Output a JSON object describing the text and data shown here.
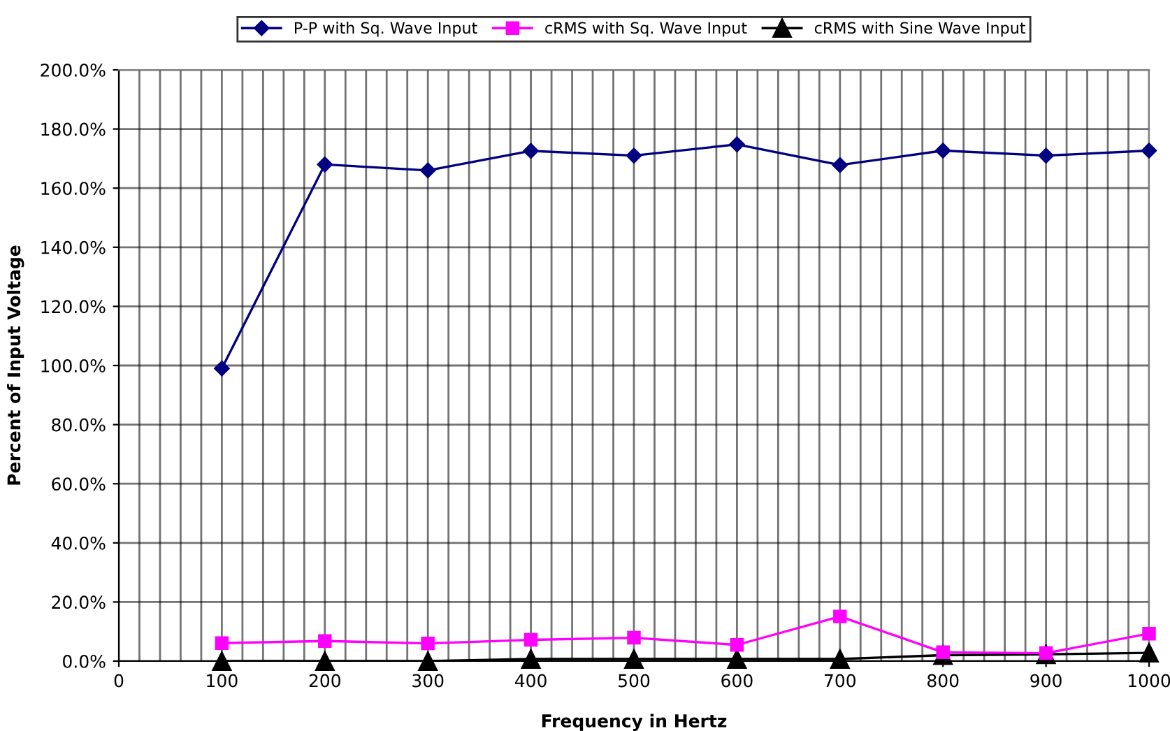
{
  "chart_data": {
    "type": "line",
    "xlabel": "Frequency in Hertz",
    "ylabel": "Percent of Input Voltage",
    "x": [
      100,
      200,
      300,
      400,
      500,
      600,
      700,
      800,
      900,
      1000
    ],
    "series": [
      {
        "name": "P-P with Sq. Wave Input",
        "color": "#000080",
        "marker": "diamond",
        "values": [
          99,
          168,
          166,
          172.6,
          171,
          174.8,
          167.8,
          172.7,
          171,
          172.7
        ]
      },
      {
        "name": "cRMS with Sq. Wave Input",
        "color": "#ff00ff",
        "marker": "square",
        "values": [
          6.1,
          6.8,
          6.0,
          7.2,
          7.9,
          5.5,
          15.1,
          3.0,
          2.7,
          9.3
        ]
      },
      {
        "name": "cRMS with Sine Wave Input",
        "color": "#000000",
        "marker": "triangle",
        "values": [
          0,
          0,
          0,
          0.7,
          0.7,
          0.7,
          0.7,
          2.0,
          2.3,
          2.8
        ]
      }
    ],
    "xlim": [
      0,
      1000
    ],
    "xticks": [
      0,
      {
        "value": 20,
        "label": null
      },
      {
        "value": 40,
        "label": null
      },
      {
        "value": 60,
        "label": null
      },
      {
        "value": 80,
        "label": null
      },
      100,
      {
        "value": 120,
        "label": null
      },
      {
        "value": 140,
        "label": null
      },
      {
        "value": 160,
        "label": null
      },
      {
        "value": 180,
        "label": null
      },
      200,
      {
        "value": 220,
        "label": null
      },
      {
        "value": 240,
        "label": null
      },
      {
        "value": 260,
        "label": null
      },
      {
        "value": 280,
        "label": null
      },
      300,
      {
        "value": 320,
        "label": null
      },
      {
        "value": 340,
        "label": null
      },
      {
        "value": 360,
        "label": null
      },
      {
        "value": 380,
        "label": null
      },
      400,
      {
        "value": 420,
        "label": null
      },
      {
        "value": 440,
        "label": null
      },
      {
        "value": 460,
        "label": null
      },
      {
        "value": 480,
        "label": null
      },
      500,
      {
        "value": 520,
        "label": null
      },
      {
        "value": 540,
        "label": null
      },
      {
        "value": 560,
        "label": null
      },
      {
        "value": 580,
        "label": null
      },
      600,
      {
        "value": 620,
        "label": null
      },
      {
        "value": 640,
        "label": null
      },
      {
        "value": 660,
        "label": null
      },
      {
        "value": 680,
        "label": null
      },
      700,
      {
        "value": 720,
        "label": null
      },
      {
        "value": 740,
        "label": null
      },
      {
        "value": 760,
        "label": null
      },
      {
        "value": 780,
        "label": null
      },
      800,
      {
        "value": 820,
        "label": null
      },
      {
        "value": 840,
        "label": null
      },
      {
        "value": 860,
        "label": null
      },
      {
        "value": 880,
        "label": null
      },
      900,
      {
        "value": 920,
        "label": null
      },
      {
        "value": 940,
        "label": null
      },
      {
        "value": 960,
        "label": null
      },
      {
        "value": 980,
        "label": null
      },
      1000
    ],
    "ylim": [
      0,
      200
    ],
    "yticks": [
      {
        "value": 0,
        "label": "0.0%"
      },
      {
        "value": 20,
        "label": "20.0%"
      },
      {
        "value": 40,
        "label": "40.0%"
      },
      {
        "value": 60,
        "label": "60.0%"
      },
      {
        "value": 80,
        "label": "80.0%"
      },
      {
        "value": 100,
        "label": "100.0%"
      },
      {
        "value": 120,
        "label": "120.0%"
      },
      {
        "value": 140,
        "label": "140.0%"
      },
      {
        "value": 160,
        "label": "160.0%"
      },
      {
        "value": 180,
        "label": "180.0%"
      },
      {
        "value": 200,
        "label": "200.0%"
      }
    ],
    "grid": true,
    "legend": "top",
    "line_style": "solid"
  }
}
